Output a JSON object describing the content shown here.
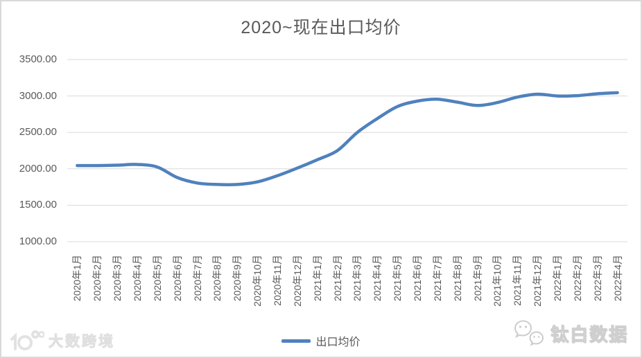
{
  "title": "2020~现在出口均价",
  "legend": {
    "label": "出口均价"
  },
  "watermarks": {
    "bottom_left": "大数跨境",
    "bottom_right": "钛白数据"
  },
  "chart_data": {
    "type": "line",
    "title": "2020~现在出口均价",
    "smooth": true,
    "grid": true,
    "legend_position": "bottom",
    "xlabel": "",
    "ylabel": "",
    "ylim": [
      1000,
      3500
    ],
    "yticks": [
      3500,
      3000,
      2500,
      2000,
      1500,
      1000
    ],
    "ytick_labels": [
      "3500.00",
      "3000.00",
      "2500.00",
      "2000.00",
      "1500.00",
      "1000.00"
    ],
    "categories": [
      "2020年1月",
      "2020年2月",
      "2020年3月",
      "2020年4月",
      "2020年5月",
      "2020年6月",
      "2020年7月",
      "2020年8月",
      "2020年9月",
      "2020年10月",
      "2020年11月",
      "2020年12月",
      "2021年1月",
      "2021年2月",
      "2021年3月",
      "2021年4月",
      "2021年5月",
      "2021年6月",
      "2021年7月",
      "2021年8月",
      "2021年9月",
      "2021年10月",
      "2021年11月",
      "2021年12月",
      "2022年1月",
      "2022年2月",
      "2022年3月",
      "2022年4月"
    ],
    "series": [
      {
        "name": "出口均价",
        "color": "#4F81BD",
        "values": [
          2045,
          2045,
          2050,
          2060,
          2025,
          1880,
          1805,
          1785,
          1785,
          1820,
          1905,
          2010,
          2125,
          2250,
          2500,
          2690,
          2855,
          2930,
          2955,
          2915,
          2870,
          2910,
          2985,
          3025,
          3000,
          3005,
          3030,
          3045
        ]
      }
    ],
    "colors": {
      "line": "#4F81BD",
      "grid": "#d9d9d9",
      "text": "#595959"
    }
  }
}
